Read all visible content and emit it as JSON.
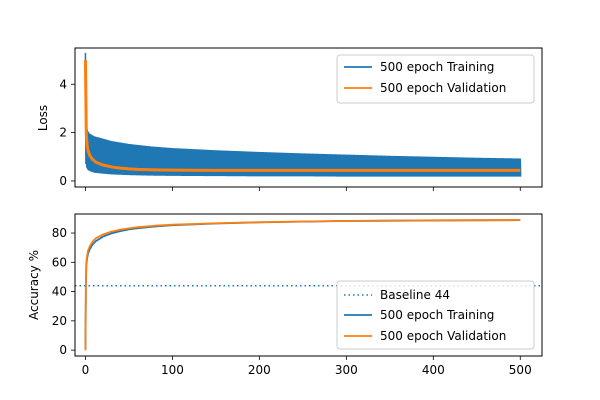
{
  "chart_data": [
    {
      "type": "line",
      "title": "",
      "xlabel": "",
      "ylabel": "Loss",
      "xlim": [
        -12,
        525
      ],
      "ylim": [
        -0.25,
        5.5
      ],
      "xticks": [
        0,
        100,
        200,
        300,
        400,
        500
      ],
      "yticks": [
        0,
        2,
        4
      ],
      "show_xtick_labels": false,
      "grid": false,
      "legend_location": "upper-right",
      "series": [
        {
          "name": "500 epoch Training",
          "color": "#1f77b4",
          "style": "solid",
          "render": "oscillating-band",
          "x": [
            0,
            1,
            2,
            3,
            5,
            10,
            20,
            30,
            50,
            75,
            100,
            150,
            200,
            250,
            300,
            350,
            400,
            450,
            500
          ],
          "upper": [
            5.3,
            2.4,
            2.15,
            2.05,
            1.95,
            1.85,
            1.75,
            1.65,
            1.53,
            1.43,
            1.36,
            1.27,
            1.2,
            1.14,
            1.09,
            1.04,
            1.0,
            0.96,
            0.93
          ],
          "lower": [
            0.7,
            0.55,
            0.48,
            0.44,
            0.4,
            0.34,
            0.3,
            0.27,
            0.24,
            0.22,
            0.21,
            0.2,
            0.19,
            0.19,
            0.18,
            0.18,
            0.18,
            0.18,
            0.18
          ]
        },
        {
          "name": "500 epoch Validation",
          "color": "#ff7f0e",
          "style": "solid",
          "x": [
            0,
            1,
            2,
            3,
            5,
            8,
            12,
            20,
            30,
            40,
            50,
            60,
            80,
            100,
            150,
            200,
            300,
            400,
            500
          ],
          "y": [
            5.0,
            1.9,
            1.45,
            1.25,
            1.05,
            0.9,
            0.78,
            0.66,
            0.58,
            0.53,
            0.5,
            0.48,
            0.46,
            0.45,
            0.44,
            0.44,
            0.44,
            0.44,
            0.44
          ]
        }
      ]
    },
    {
      "type": "line",
      "title": "",
      "xlabel": "",
      "ylabel": "Accuracy %",
      "xlim": [
        -12,
        525
      ],
      "ylim": [
        -4,
        93
      ],
      "xticks": [
        0,
        100,
        200,
        300,
        400,
        500
      ],
      "yticks": [
        0,
        20,
        40,
        60,
        80
      ],
      "grid": false,
      "legend_location": "lower-right",
      "series": [
        {
          "name": "Baseline 44",
          "color": "#1f77b4",
          "style": "dotted",
          "y": 44
        },
        {
          "name": "500 epoch Training",
          "color": "#1f77b4",
          "style": "solid",
          "x": [
            0,
            0.5,
            1,
            2,
            3,
            5,
            8,
            12,
            20,
            30,
            40,
            50,
            60,
            80,
            100,
            150,
            200,
            250,
            300,
            400,
            500
          ],
          "y": [
            0,
            42,
            58,
            63,
            66,
            69,
            72,
            74.5,
            77.5,
            79.8,
            81.3,
            82.5,
            83.3,
            84.5,
            85.3,
            86.5,
            87.3,
            87.8,
            88.2,
            88.6,
            88.8
          ]
        },
        {
          "name": "500 epoch Validation",
          "color": "#ff7f0e",
          "style": "solid",
          "x": [
            0,
            0.5,
            1,
            2,
            3,
            5,
            8,
            12,
            20,
            30,
            40,
            50,
            60,
            80,
            100,
            150,
            200,
            250,
            300,
            400,
            500
          ],
          "y": [
            0,
            45,
            60,
            65,
            68,
            71,
            74,
            76.5,
            79,
            81,
            82.3,
            83.2,
            84,
            85,
            85.7,
            86.7,
            87.4,
            87.9,
            88.3,
            88.7,
            88.9
          ]
        }
      ]
    }
  ]
}
